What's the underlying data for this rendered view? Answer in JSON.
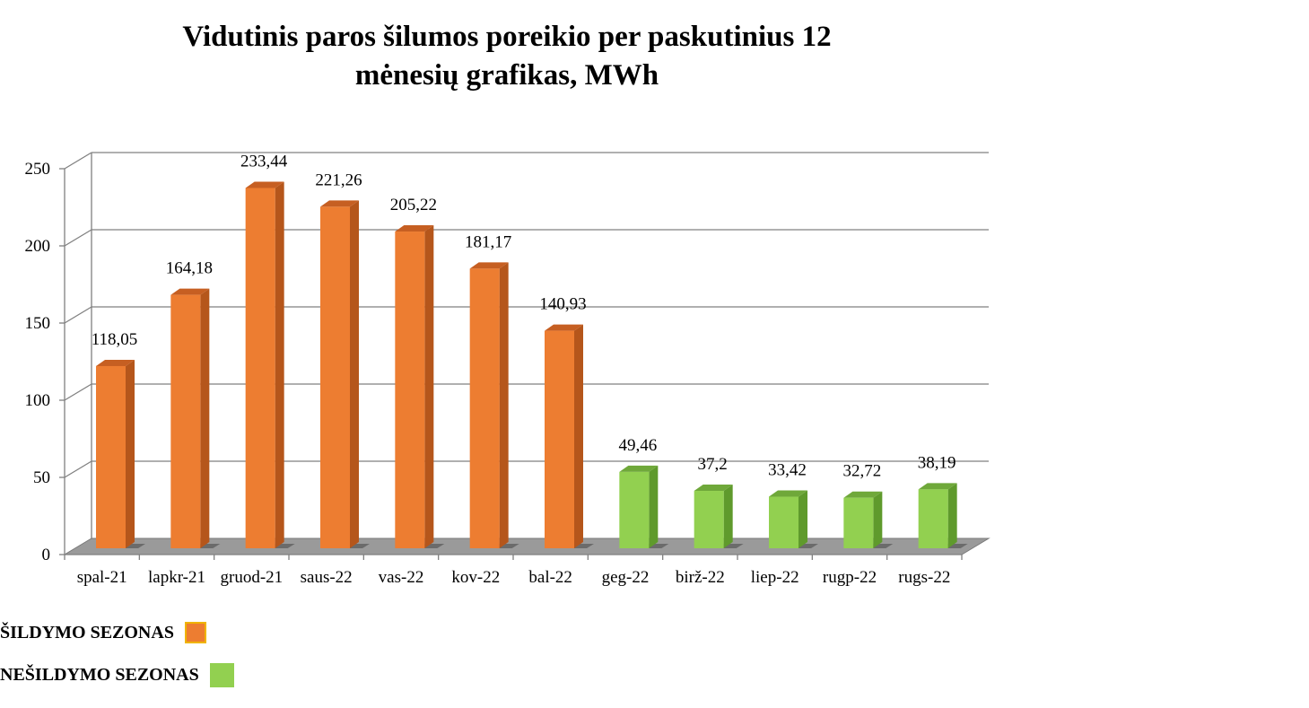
{
  "chart_data": {
    "type": "bar",
    "title": [
      "Vidutinis paros šilumos poreikio per paskutinius 12",
      "mėnesių grafikas, MWh"
    ],
    "categories": [
      "spal-21",
      "lapkr-21",
      "gruod-21",
      "saus-22",
      "vas-22",
      "kov-22",
      "bal-22",
      "geg-22",
      "birž-22",
      "liep-22",
      "rugp-22",
      "rugs-22"
    ],
    "values": [
      118.05,
      164.18,
      233.44,
      221.26,
      205.22,
      181.17,
      140.93,
      49.46,
      37.2,
      33.42,
      32.72,
      38.19
    ],
    "value_labels": [
      "118,05",
      "164,18",
      "233,44",
      "221,26",
      "205,22",
      "181,17",
      "140,93",
      "49,46",
      "37,2",
      "33,42",
      "32,72",
      "38,19"
    ],
    "season": [
      "heating",
      "heating",
      "heating",
      "heating",
      "heating",
      "heating",
      "heating",
      "nonheating",
      "nonheating",
      "nonheating",
      "nonheating",
      "nonheating"
    ],
    "ylim": [
      0,
      250
    ],
    "yticks": [
      0,
      50,
      100,
      150,
      200,
      250
    ],
    "grid": true,
    "colors": {
      "heating": "#ED7D31",
      "heating_side": "#B5561B",
      "heating_top": "#C65F22",
      "nonheating": "#92D050",
      "nonheating_side": "#5F9A2C",
      "nonheating_top": "#6FA83A",
      "grid": "#808080",
      "floor": "#9A9A9A"
    }
  },
  "legend": {
    "heating_label": "ŠILDYMO SEZONAS",
    "nonheating_label": "NEŠILDYMO SEZONAS"
  }
}
